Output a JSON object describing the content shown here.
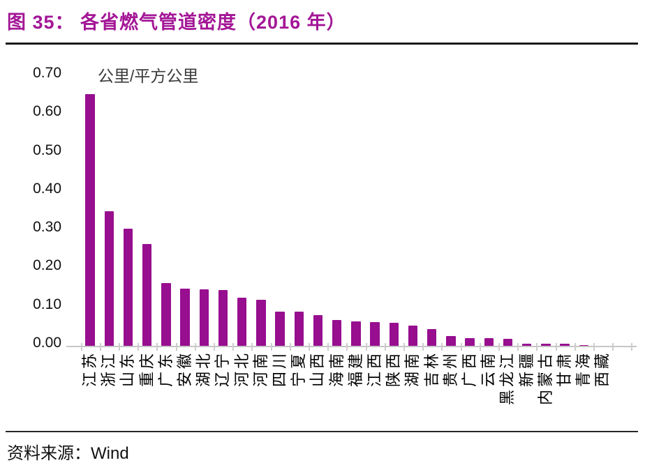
{
  "title": {
    "text": "图 35： 各省燃气管道密度（2016 年）"
  },
  "source": {
    "label": "资料来源：",
    "value": "Wind"
  },
  "colors": {
    "accent_title": "#A31696",
    "bar": "#970E8F",
    "axis": "#C6C6C6",
    "text": "#000000"
  },
  "chart_data": {
    "type": "bar",
    "title": "各省燃气管道密度（2016 年）",
    "unit_label": "公里/平方公里",
    "xlabel": "",
    "ylabel": "公里/平方公里",
    "ylim": [
      0,
      0.7
    ],
    "yticks": [
      0.0,
      0.1,
      0.2,
      0.3,
      0.4,
      0.5,
      0.6,
      0.7
    ],
    "grid": false,
    "legend": "none",
    "bar_color": "#970E8F",
    "categories": [
      "江苏",
      "浙江",
      "山东",
      "重庆",
      "广东",
      "安徽",
      "湖北",
      "辽宁",
      "河北",
      "河南",
      "四川",
      "宁夏",
      "山西",
      "海南",
      "福建",
      "江西",
      "陕西",
      "湖南",
      "吉林",
      "贵州",
      "广西",
      "云南",
      "黑龙江",
      "新疆",
      "内蒙古",
      "甘肃",
      "青海",
      "西藏"
    ],
    "values": [
      0.655,
      0.35,
      0.305,
      0.265,
      0.165,
      0.15,
      0.148,
      0.147,
      0.127,
      0.122,
      0.091,
      0.09,
      0.081,
      0.068,
      0.065,
      0.063,
      0.062,
      0.055,
      0.045,
      0.028,
      0.022,
      0.021,
      0.02,
      0.008,
      0.008,
      0.007,
      0.004,
      0.002
    ]
  }
}
